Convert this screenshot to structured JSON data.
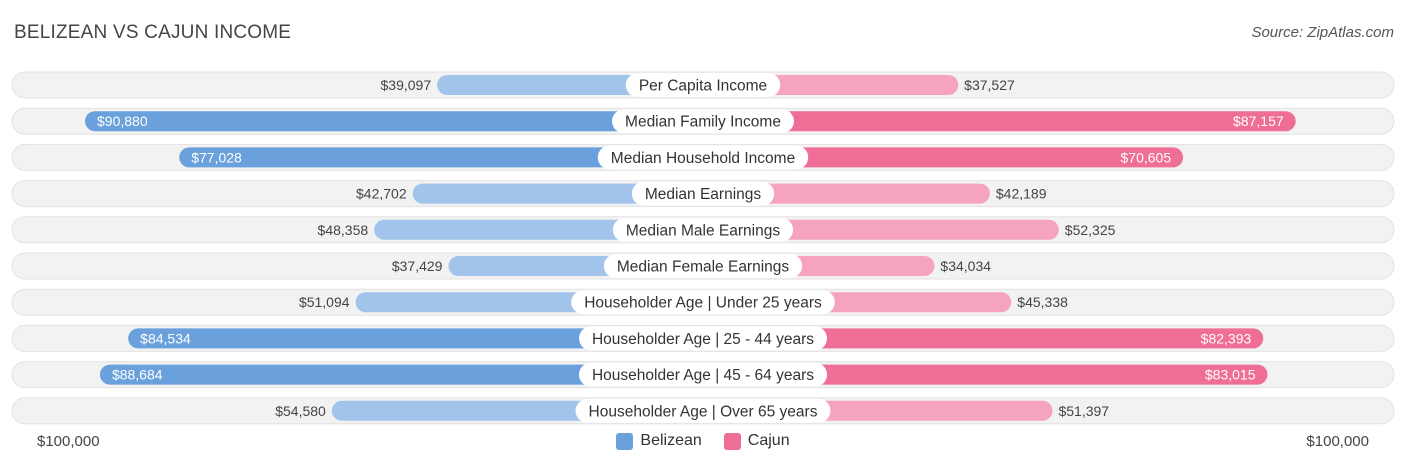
{
  "title": "BELIZEAN VS CAJUN INCOME",
  "source": "Source: ZipAtlas.com",
  "axis": {
    "left_label": "$100,000",
    "right_label": "$100,000"
  },
  "legend": [
    {
      "label": "Belizean",
      "color": "#6aa0dc"
    },
    {
      "label": "Cajun",
      "color": "#ef6e96"
    }
  ],
  "colors": {
    "belizean_strong": "#6aa0dc",
    "belizean_light": "#a3c4ea",
    "cajun_strong": "#ef6e96",
    "cajun_light": "#f5a3bf",
    "track": "#f2f2f2"
  },
  "chart_data": {
    "type": "bar",
    "orientation": "horizontal-diverging",
    "title": "BELIZEAN VS CAJUN INCOME",
    "xlim": [
      0,
      100000
    ],
    "categories": [
      "Per Capita Income",
      "Median Family Income",
      "Median Household Income",
      "Median Earnings",
      "Median Male Earnings",
      "Median Female Earnings",
      "Householder Age | Under 25 years",
      "Householder Age | 25 - 44 years",
      "Householder Age | 45 - 64 years",
      "Householder Age | Over 65 years"
    ],
    "series": [
      {
        "name": "Belizean",
        "side": "left",
        "values": [
          39097,
          90880,
          77028,
          42702,
          48358,
          37429,
          51094,
          84534,
          88684,
          54580
        ],
        "labels": [
          "$39,097",
          "$90,880",
          "$77,028",
          "$42,702",
          "$48,358",
          "$37,429",
          "$51,094",
          "$84,534",
          "$88,684",
          "$54,580"
        ]
      },
      {
        "name": "Cajun",
        "side": "right",
        "values": [
          37527,
          87157,
          70605,
          42189,
          52325,
          34034,
          45338,
          82393,
          83015,
          51397
        ],
        "labels": [
          "$37,527",
          "$87,157",
          "$70,605",
          "$42,189",
          "$52,325",
          "$34,034",
          "$45,338",
          "$82,393",
          "$83,015",
          "$51,397"
        ]
      }
    ]
  }
}
